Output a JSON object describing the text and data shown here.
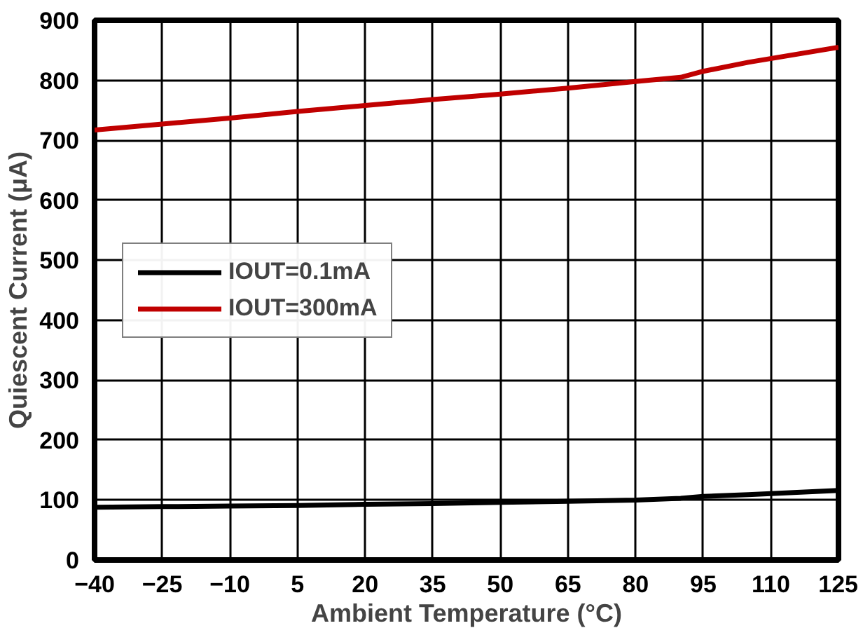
{
  "chart_data": {
    "type": "line",
    "xlabel": "Ambient Temperature (°C)",
    "ylabel": "Quiescent Current (μA)",
    "xlim": [
      -40,
      125
    ],
    "xticks": [
      -40,
      -25,
      -10,
      5,
      20,
      35,
      50,
      65,
      80,
      95,
      110,
      125
    ],
    "ylim": [
      0,
      900
    ],
    "yticks": [
      0,
      100,
      200,
      300,
      400,
      500,
      600,
      700,
      800,
      900
    ],
    "grid": true,
    "legend": "left",
    "x": [
      -40,
      -25,
      -10,
      5,
      20,
      35,
      50,
      65,
      80,
      90,
      95,
      105,
      125
    ],
    "series": [
      {
        "name": "IOUT=0.1mA",
        "color": "#000000",
        "values": [
          88,
          89,
          90,
          91,
          93,
          94,
          96,
          98,
          100,
          103,
          106,
          109,
          116
        ]
      },
      {
        "name": "IOUT=300mA",
        "color": "#c00000",
        "values": [
          717,
          727,
          737,
          748,
          758,
          768,
          777,
          787,
          798,
          805,
          815,
          830,
          855
        ]
      }
    ]
  }
}
